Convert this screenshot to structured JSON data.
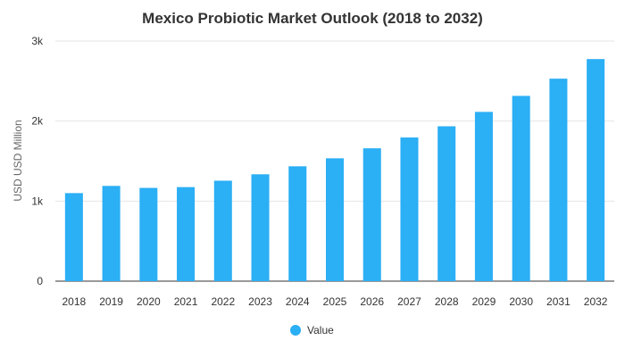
{
  "chart_data": {
    "type": "bar",
    "title": "Mexico Probiotic Market Outlook (2018 to 2032)",
    "xlabel": "",
    "ylabel": "USD USD Million",
    "categories": [
      "2018",
      "2019",
      "2020",
      "2021",
      "2022",
      "2023",
      "2024",
      "2025",
      "2026",
      "2027",
      "2028",
      "2029",
      "2030",
      "2031",
      "2032"
    ],
    "series": [
      {
        "name": "Value",
        "color": "#2BAFF5",
        "values": [
          1100,
          1190,
          1165,
          1175,
          1255,
          1335,
          1435,
          1535,
          1660,
          1795,
          1935,
          2115,
          2315,
          2530,
          2775
        ]
      }
    ],
    "ylim": [
      0,
      3000
    ],
    "yticks": [
      0,
      1000,
      2000,
      3000
    ],
    "ytick_labels": [
      "0",
      "1k",
      "2k",
      "3k"
    ],
    "grid": true,
    "legend": "bottom"
  }
}
